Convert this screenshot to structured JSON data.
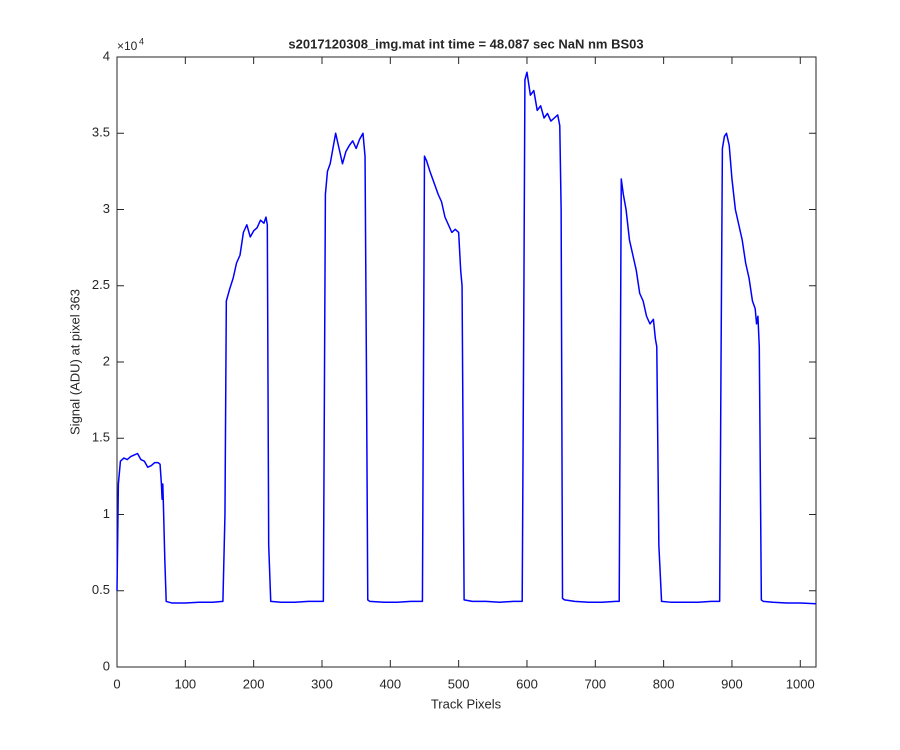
{
  "chart_data": {
    "type": "line",
    "title": "s2017120308_img.mat int time = 48.087 sec  NaN nm BS03",
    "x_label": "Track Pixels",
    "y_label": "Signal (ADU) at pixel 363",
    "y_multiplier": "×10",
    "y_multiplier_exponent": "4",
    "xlim": [
      0,
      1023
    ],
    "ylim": [
      0,
      40000
    ],
    "xticks": [
      0,
      100,
      200,
      300,
      400,
      500,
      600,
      700,
      800,
      900,
      1000
    ],
    "yticks": [
      {
        "value": 0,
        "label": "0"
      },
      {
        "value": 5000,
        "label": "0.5"
      },
      {
        "value": 10000,
        "label": "1"
      },
      {
        "value": 15000,
        "label": "1.5"
      },
      {
        "value": 20000,
        "label": "2"
      },
      {
        "value": 25000,
        "label": "2.5"
      },
      {
        "value": 30000,
        "label": "3"
      },
      {
        "value": 35000,
        "label": "3.5"
      },
      {
        "value": 40000,
        "label": "4"
      }
    ],
    "grid": false,
    "series": [
      {
        "color": "#0000ff",
        "x": [
          0,
          2,
          5,
          10,
          15,
          20,
          25,
          30,
          35,
          40,
          45,
          50,
          55,
          60,
          63,
          65,
          66,
          67,
          68,
          70,
          72,
          80,
          100,
          120,
          140,
          155,
          158,
          160,
          165,
          170,
          175,
          180,
          185,
          190,
          195,
          200,
          205,
          210,
          215,
          218,
          220,
          222,
          225,
          240,
          260,
          280,
          300,
          302,
          305,
          308,
          312,
          316,
          320,
          325,
          330,
          335,
          340,
          345,
          350,
          355,
          360,
          363,
          365,
          367,
          370,
          390,
          410,
          430,
          447,
          450,
          453,
          458,
          462,
          466,
          470,
          475,
          480,
          485,
          490,
          495,
          500,
          503,
          505,
          508,
          520,
          540,
          560,
          580,
          593,
          595,
          597,
          600,
          605,
          610,
          615,
          620,
          625,
          630,
          635,
          640,
          645,
          648,
          650,
          652,
          655,
          670,
          690,
          710,
          730,
          735,
          738,
          741,
          745,
          750,
          755,
          760,
          765,
          770,
          775,
          780,
          785,
          788,
          790,
          793,
          797,
          810,
          830,
          850,
          870,
          882,
          884,
          886,
          889,
          892,
          896,
          900,
          905,
          910,
          915,
          920,
          925,
          930,
          934,
          936,
          938,
          940,
          943,
          946,
          960,
          980,
          1000,
          1023
        ],
        "values": [
          5000,
          12000,
          13500,
          13700,
          13600,
          13800,
          13900,
          14000,
          13600,
          13500,
          13100,
          13200,
          13400,
          13400,
          13300,
          12000,
          11000,
          12000,
          10500,
          7000,
          4300,
          4200,
          4200,
          4250,
          4250,
          4300,
          10000,
          24000,
          24800,
          25500,
          26500,
          27000,
          28500,
          29000,
          28200,
          28600,
          28800,
          29300,
          29100,
          29500,
          29000,
          8000,
          4300,
          4250,
          4250,
          4300,
          4300,
          4300,
          31000,
          32500,
          33000,
          34000,
          35000,
          34000,
          33000,
          33800,
          34200,
          34500,
          34000,
          34600,
          35000,
          33500,
          20000,
          4400,
          4300,
          4250,
          4250,
          4300,
          4300,
          33500,
          33200,
          32500,
          32000,
          31500,
          31000,
          30500,
          29500,
          29000,
          28500,
          28700,
          28500,
          26000,
          25000,
          4400,
          4300,
          4300,
          4250,
          4300,
          4300,
          20000,
          38500,
          39000,
          37500,
          37800,
          36500,
          36800,
          36000,
          36300,
          35800,
          36000,
          36200,
          35500,
          30000,
          4500,
          4400,
          4300,
          4250,
          4250,
          4300,
          4300,
          32000,
          31000,
          30000,
          28000,
          27000,
          26000,
          24500,
          24000,
          23000,
          22500,
          22800,
          21500,
          21000,
          8000,
          4300,
          4250,
          4250,
          4250,
          4300,
          4300,
          20000,
          34000,
          34800,
          35000,
          34200,
          32000,
          30000,
          29000,
          28000,
          26500,
          25500,
          24000,
          23500,
          22500,
          23000,
          21000,
          4400,
          4300,
          4250,
          4200,
          4200,
          4150
        ]
      }
    ]
  }
}
